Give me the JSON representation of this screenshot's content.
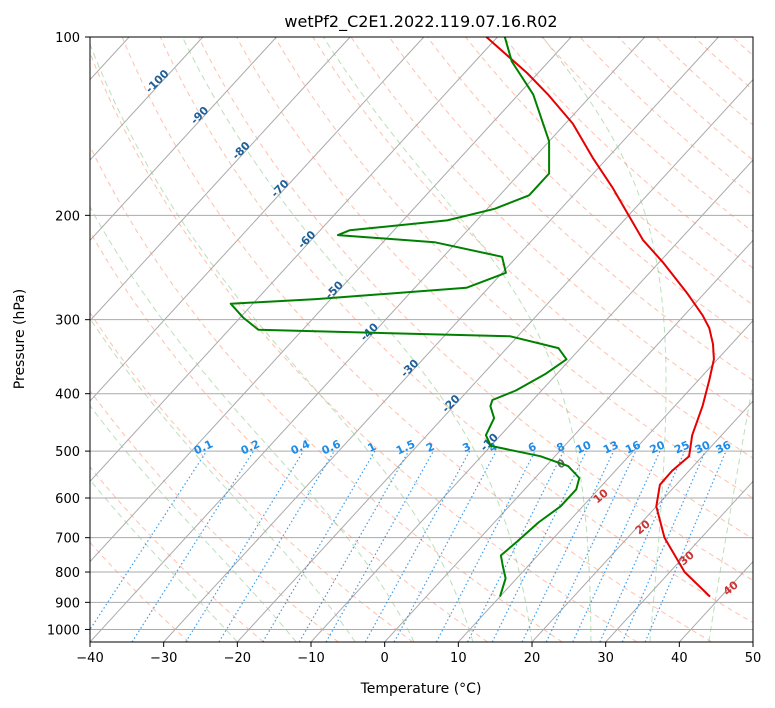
{
  "chart_data": {
    "type": "line",
    "title": "wetPf2_C2E1.2022.119.07.16.R02",
    "xlabel": "Temperature (°C)",
    "ylabel": "Pressure (hPa)",
    "xlim": [
      -40,
      50
    ],
    "ylim": [
      1050,
      100
    ],
    "y_scale": "log",
    "grid": true,
    "x_ticks": [
      -40,
      -30,
      -20,
      -10,
      0,
      10,
      20,
      30,
      40,
      50
    ],
    "y_ticks": [
      100,
      200,
      300,
      400,
      500,
      600,
      700,
      800,
      900,
      1000
    ],
    "colors": {
      "temperature": "#e60000",
      "dewpoint": "#008000",
      "dry_adiabats": "#ff8c69",
      "moist_adiabats": "#66bb66",
      "mixing_ratio": "#1e8ce6",
      "grid": "#aaaaaa"
    },
    "series": [
      {
        "points": [
          {
            "p": 880,
            "t": 38.5
          },
          {
            "p": 800,
            "t": 32.0
          },
          {
            "p": 700,
            "t": 25.0
          },
          {
            "p": 620,
            "t": 20.0
          },
          {
            "p": 570,
            "t": 17.8
          },
          {
            "p": 540,
            "t": 17.7
          },
          {
            "p": 510,
            "t": 18.2
          },
          {
            "p": 470,
            "t": 16.0
          },
          {
            "p": 420,
            "t": 13.8
          },
          {
            "p": 380,
            "t": 11.5
          },
          {
            "p": 350,
            "t": 9.5
          },
          {
            "p": 330,
            "t": 7.5
          },
          {
            "p": 310,
            "t": 5.0
          },
          {
            "p": 295,
            "t": 2.5
          },
          {
            "p": 270,
            "t": -2.5
          },
          {
            "p": 240,
            "t": -9.5
          },
          {
            "p": 220,
            "t": -15.0
          },
          {
            "p": 200,
            "t": -20.0
          },
          {
            "p": 180,
            "t": -25.5
          },
          {
            "p": 160,
            "t": -32.0
          },
          {
            "p": 140,
            "t": -39.0
          },
          {
            "p": 125,
            "t": -46.0
          },
          {
            "p": 115,
            "t": -51.5
          },
          {
            "p": 100,
            "t": -61.5
          }
        ]
      },
      {
        "points": [
          {
            "p": 880,
            "t": 10.0
          },
          {
            "p": 820,
            "t": 8.5
          },
          {
            "p": 780,
            "t": 6.5
          },
          {
            "p": 750,
            "t": 5.0
          },
          {
            "p": 710,
            "t": 5.5
          },
          {
            "p": 660,
            "t": 6.0
          },
          {
            "p": 620,
            "t": 7.0
          },
          {
            "p": 580,
            "t": 7.0
          },
          {
            "p": 555,
            "t": 6.0
          },
          {
            "p": 530,
            "t": 3.0
          },
          {
            "p": 510,
            "t": -2.0
          },
          {
            "p": 490,
            "t": -10.0
          },
          {
            "p": 470,
            "t": -12.0
          },
          {
            "p": 440,
            "t": -13.0
          },
          {
            "p": 420,
            "t": -15.0
          },
          {
            "p": 410,
            "t": -15.5
          },
          {
            "p": 395,
            "t": -13.5
          },
          {
            "p": 370,
            "t": -11.5
          },
          {
            "p": 350,
            "t": -10.5
          },
          {
            "p": 335,
            "t": -13.0
          },
          {
            "p": 320,
            "t": -21.0
          },
          {
            "p": 312,
            "t": -56.0
          },
          {
            "p": 298,
            "t": -59.5
          },
          {
            "p": 282,
            "t": -63.0
          },
          {
            "p": 277,
            "t": -52.0
          },
          {
            "p": 265,
            "t": -33.0
          },
          {
            "p": 250,
            "t": -29.5
          },
          {
            "p": 235,
            "t": -32.0
          },
          {
            "p": 222,
            "t": -43.0
          },
          {
            "p": 216,
            "t": -57.0
          },
          {
            "p": 212,
            "t": -56.0
          },
          {
            "p": 204,
            "t": -44.0
          },
          {
            "p": 195,
            "t": -39.0
          },
          {
            "p": 185,
            "t": -36.0
          },
          {
            "p": 170,
            "t": -36.0
          },
          {
            "p": 150,
            "t": -40.0
          },
          {
            "p": 125,
            "t": -48.0
          },
          {
            "p": 110,
            "t": -55.0
          },
          {
            "p": 100,
            "t": -59.0
          }
        ]
      }
    ],
    "annotations": {
      "temperature_labels": [
        {
          "text": "-100",
          "t": -100,
          "p": 120
        },
        {
          "text": "-90",
          "t": -90,
          "p": 137
        },
        {
          "text": "-80",
          "t": -80,
          "p": 157
        },
        {
          "text": "-70",
          "t": -70,
          "p": 182
        },
        {
          "text": "-60",
          "t": -60,
          "p": 222
        },
        {
          "text": "-50",
          "t": -50,
          "p": 270
        },
        {
          "text": "-40",
          "t": -40,
          "p": 318
        },
        {
          "text": "-30",
          "t": -30,
          "p": 366
        },
        {
          "text": "-20",
          "t": -20,
          "p": 420
        },
        {
          "text": "-10",
          "t": -10,
          "p": 488
        }
      ],
      "mixing_ratio_labels": [
        "0.1",
        "0.2",
        "0.4",
        "0.6",
        "1",
        "1.5",
        "2",
        "3",
        "4",
        "6",
        "8",
        "10",
        "13",
        "16",
        "20",
        "25",
        "30",
        "36"
      ],
      "moist_labels": [
        "0"
      ],
      "dry_labels": [
        "10",
        "20",
        "30",
        "40"
      ]
    }
  }
}
